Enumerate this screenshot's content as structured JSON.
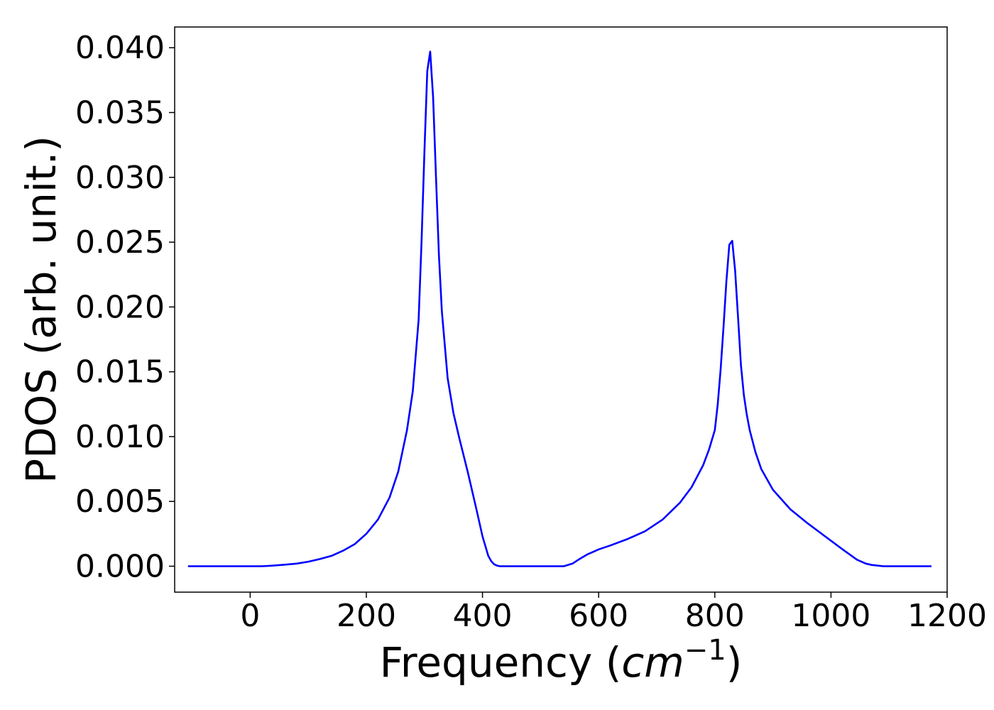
{
  "chart_data": {
    "type": "line",
    "title": "",
    "xlabel": "Frequency (",
    "xlabel_math_base": "cm",
    "xlabel_math_exp": "−1",
    "xlabel_suffix": ")",
    "ylabel": "PDOS (arb. unit.)",
    "xlim": [
      -130,
      1200
    ],
    "ylim": [
      -0.002,
      0.0416
    ],
    "xticks": [
      0,
      200,
      400,
      600,
      800,
      1000,
      1200
    ],
    "xtick_labels": [
      "0",
      "200",
      "400",
      "600",
      "800",
      "1000",
      "1200"
    ],
    "yticks": [
      0.0,
      0.005,
      0.01,
      0.015,
      0.02,
      0.025,
      0.03,
      0.035,
      0.04
    ],
    "ytick_labels": [
      "0.000",
      "0.005",
      "0.010",
      "0.015",
      "0.020",
      "0.025",
      "0.030",
      "0.035",
      "0.040"
    ],
    "grid": false,
    "legend": "none",
    "series": [
      {
        "color": "#0000ff",
        "x": [
          -107,
          0,
          20,
          40,
          60,
          80,
          100,
          120,
          140,
          160,
          180,
          200,
          220,
          240,
          255,
          270,
          280,
          290,
          295,
          300,
          305,
          310,
          315,
          320,
          325,
          330,
          340,
          350,
          360,
          375,
          390,
          400,
          410,
          415,
          420,
          425,
          430,
          440,
          450,
          500,
          540,
          555,
          565,
          580,
          600,
          620,
          650,
          680,
          710,
          740,
          760,
          780,
          790,
          800,
          805,
          810,
          815,
          820,
          825,
          830,
          835,
          840,
          845,
          850,
          855,
          860,
          870,
          880,
          900,
          930,
          960,
          990,
          1020,
          1045,
          1060,
          1070,
          1080,
          1090,
          1100,
          1150,
          1173
        ],
        "y": [
          0.0,
          0.0,
          0.0,
          5e-05,
          0.00012,
          0.0002,
          0.00035,
          0.00055,
          0.0008,
          0.0012,
          0.0017,
          0.0025,
          0.0036,
          0.0053,
          0.0073,
          0.0105,
          0.0135,
          0.019,
          0.025,
          0.032,
          0.0382,
          0.0397,
          0.0362,
          0.03,
          0.024,
          0.0197,
          0.0145,
          0.0118,
          0.0099,
          0.0072,
          0.0043,
          0.0023,
          0.0008,
          0.0004,
          0.00015,
          5e-05,
          0.0,
          0.0,
          0.0,
          0.0,
          0.0,
          0.0002,
          0.0005,
          0.0009,
          0.0013,
          0.0016,
          0.0021,
          0.0027,
          0.0036,
          0.0049,
          0.0061,
          0.0078,
          0.009,
          0.0105,
          0.0125,
          0.0152,
          0.0185,
          0.022,
          0.0248,
          0.0251,
          0.0228,
          0.0192,
          0.0155,
          0.0132,
          0.0117,
          0.0105,
          0.0088,
          0.0075,
          0.0059,
          0.0044,
          0.0033,
          0.0023,
          0.0013,
          0.0005,
          0.0002,
          0.0001,
          5e-05,
          0.0,
          0.0,
          0.0,
          0.0
        ]
      }
    ]
  }
}
